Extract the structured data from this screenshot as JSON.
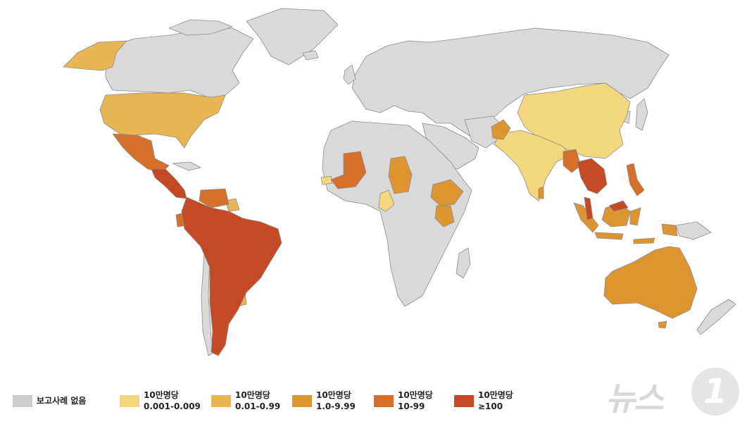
{
  "map": {
    "colors": {
      "ocean": "#ffffff",
      "border": "#8c8c8c",
      "no_report": "#d9d9d9",
      "c1": "#f3d77e",
      "c2": "#e8b554",
      "c3": "#dd9532",
      "c4": "#d4702a",
      "c5": "#c44a26"
    }
  },
  "legend": [
    {
      "line1": "보고사례 없음",
      "line2": "",
      "color": "#cccccc"
    },
    {
      "line1": "10만명당",
      "line2": "0.001-0.009",
      "color": "#f3d77e"
    },
    {
      "line1": "10만명당",
      "line2": "0.01-0.99",
      "color": "#e8b554"
    },
    {
      "line1": "10만명당",
      "line2": "1.0-9.99",
      "color": "#dd9532"
    },
    {
      "line1": "10만명당",
      "line2": "10-99",
      "color": "#d4702a"
    },
    {
      "line1": "10만명당",
      "line2": "≥100",
      "color": "#c44a26"
    }
  ],
  "watermark": {
    "text": "뉴스",
    "badge": "1"
  }
}
